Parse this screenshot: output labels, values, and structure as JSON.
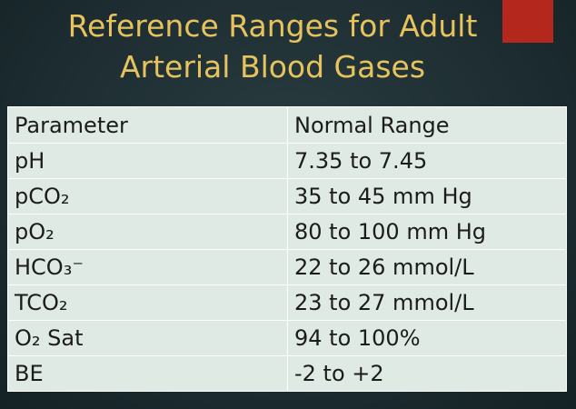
{
  "header": {
    "title_lines": [
      "Reference Ranges for Adult",
      "Arterial Blood Gases"
    ]
  },
  "table": {
    "columns": [
      "Parameter",
      "Normal Range"
    ],
    "rows": [
      [
        "pH",
        "7.35 to 7.45"
      ],
      [
        "pCO₂",
        "35 to 45 mm Hg"
      ],
      [
        "pO₂",
        "80 to 100 mm Hg"
      ],
      [
        "HCO₃⁻",
        "22 to 26 mmol/L"
      ],
      [
        "TCO₂",
        "23 to 27 mmol/L"
      ],
      [
        "O₂ Sat",
        "94 to 100%"
      ],
      [
        "BE",
        "-2 to +2"
      ]
    ]
  }
}
